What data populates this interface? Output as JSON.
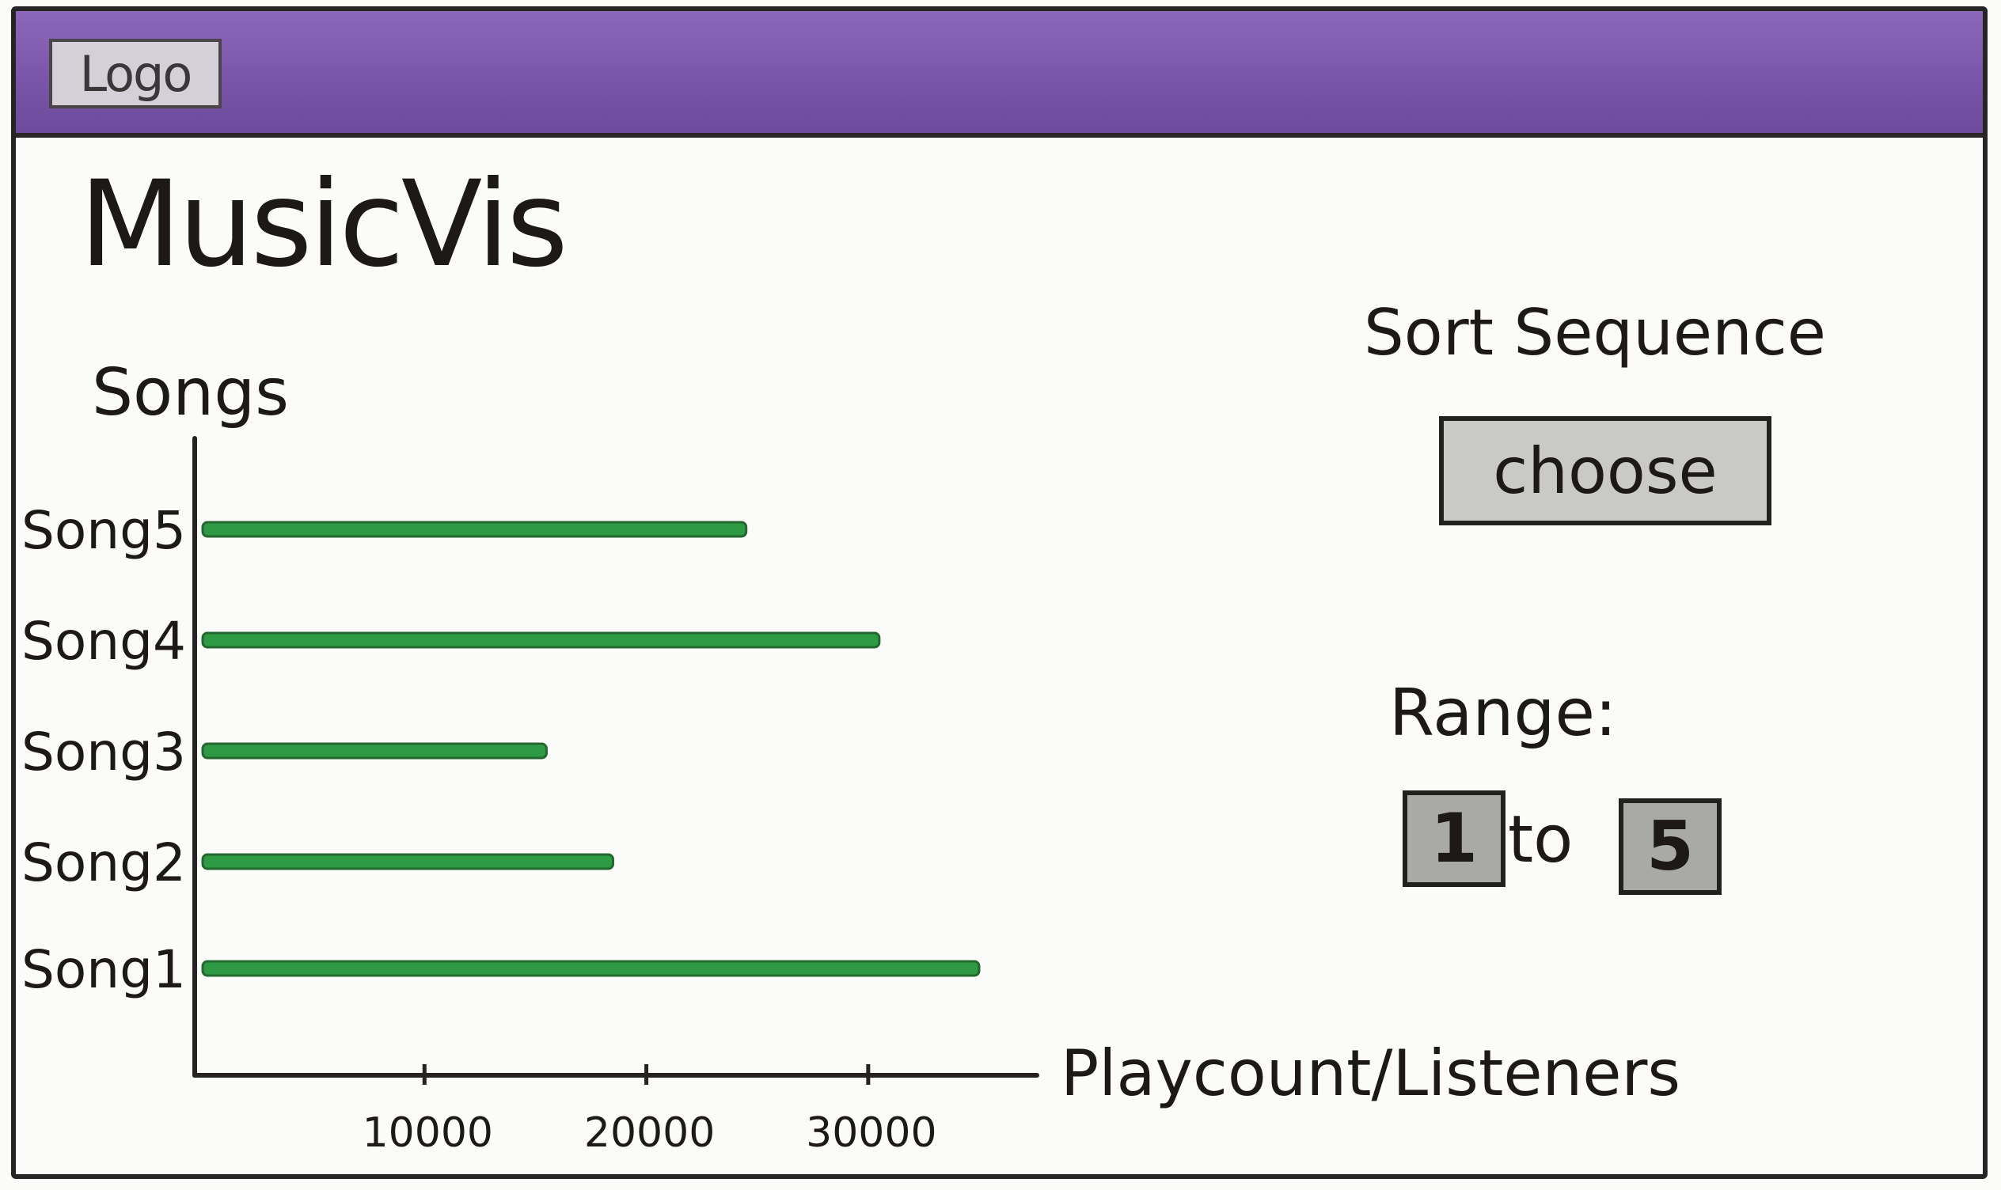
{
  "header": {
    "logo_text": "Logo",
    "header_color": "#7a55a9"
  },
  "app": {
    "title": "MusicVis"
  },
  "controls": {
    "sort_label": "Sort Sequence",
    "choose_label": "choose",
    "range_label": "Range:",
    "range_from": "1",
    "range_sep": "to",
    "range_to": "5"
  },
  "chart_data": {
    "type": "bar",
    "orientation": "horizontal",
    "categories": [
      "Song1",
      "Song2",
      "Song3",
      "Song4",
      "Song5"
    ],
    "values": [
      35000,
      18500,
      15500,
      30500,
      24500
    ],
    "bar_color": "#2f9a44",
    "ylabel": "Songs",
    "xlabel": "Playcount/Listeners",
    "xticks": [
      10000,
      20000,
      30000
    ],
    "xlim": [
      0,
      38000
    ],
    "grid": false
  }
}
